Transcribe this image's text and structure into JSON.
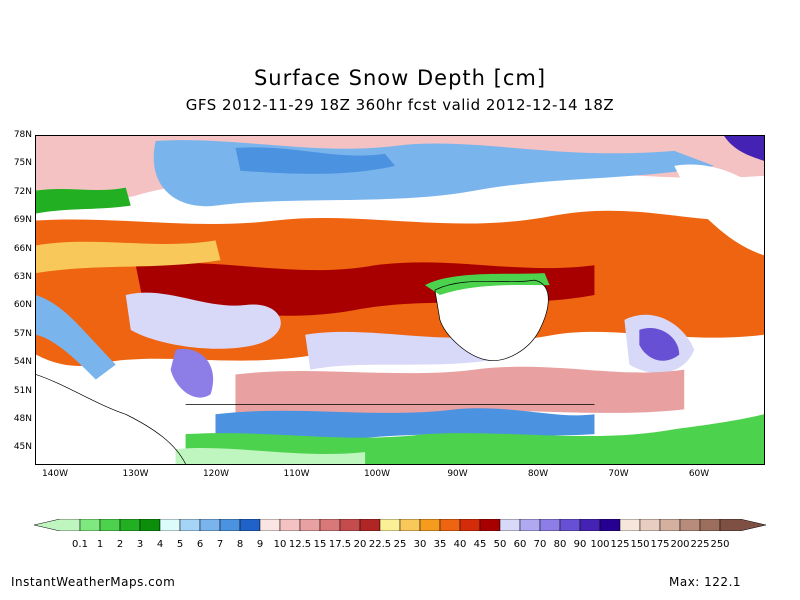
{
  "title": "Surface Snow Depth [cm]",
  "subtitle": "GFS 2012-11-29 18Z 360hr fcst valid 2012-12-14 18Z",
  "lat_labels": [
    "78N",
    "75N",
    "72N",
    "69N",
    "66N",
    "63N",
    "60N",
    "57N",
    "54N",
    "51N",
    "48N",
    "45N"
  ],
  "lon_labels": [
    "140W",
    "130W",
    "120W",
    "110W",
    "100W",
    "90W",
    "80W",
    "70W",
    "60W"
  ],
  "colorbar": {
    "labels": [
      "0.1",
      "1",
      "2",
      "3",
      "4",
      "5",
      "6",
      "7",
      "8",
      "9",
      "10",
      "12.5",
      "15",
      "17.5",
      "20",
      "22.5",
      "25",
      "30",
      "35",
      "40",
      "45",
      "50",
      "60",
      "70",
      "80",
      "90",
      "100",
      "125",
      "150",
      "175",
      "200",
      "225",
      "250"
    ],
    "colors": [
      "#bff5bf",
      "#7fe87f",
      "#4cd24c",
      "#22b022",
      "#0b8f0b",
      "#dcfcfc",
      "#a6d4f6",
      "#7ab4ec",
      "#4b92e0",
      "#1f63c8",
      "#fbe4e4",
      "#f4c2c2",
      "#e8a0a0",
      "#d87878",
      "#c44c4c",
      "#b02626",
      "#fbf096",
      "#f8c85a",
      "#f59c1e",
      "#ee6410",
      "#d42c08",
      "#a80000",
      "#d8d8f8",
      "#b0a8f0",
      "#8c7ee6",
      "#6850d4",
      "#4422b4",
      "#260090",
      "#f6e6dc",
      "#e8cec0",
      "#d4b0a0",
      "#b88c7c",
      "#9c6e5e",
      "#7e5044"
    ]
  },
  "credit": "InstantWeatherMaps.com",
  "max_label": "Max: 122.1"
}
